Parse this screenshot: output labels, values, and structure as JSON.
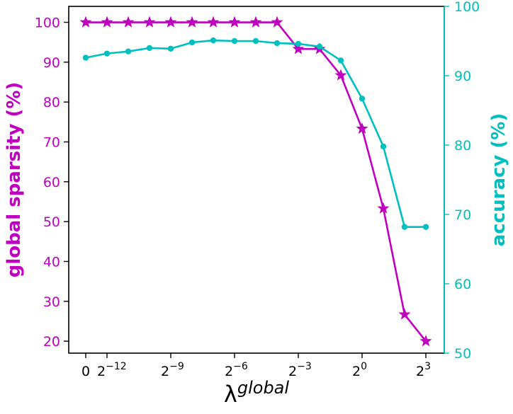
{
  "chart_data": {
    "type": "line",
    "title": "",
    "xlabel": {
      "base": "λ",
      "sup": "global"
    },
    "ylabel_left": "global sparsity (%)",
    "ylabel_right": "accuracy (%)",
    "colors": {
      "left": "#bf00bf",
      "right": "#00bfbf",
      "axis": "#000000"
    },
    "grid": false,
    "legend": "none",
    "x_scale": "log2",
    "x_tick_labels": [
      {
        "base": "0",
        "exp": "",
        "at": -13
      },
      {
        "base": "2",
        "exp": "−12",
        "at": -12
      },
      {
        "base": "2",
        "exp": "−9",
        "at": -9
      },
      {
        "base": "2",
        "exp": "−6",
        "at": -6
      },
      {
        "base": "2",
        "exp": "−3",
        "at": -3
      },
      {
        "base": "2",
        "exp": "0",
        "at": 0
      },
      {
        "base": "2",
        "exp": "3",
        "at": 3
      }
    ],
    "x": [
      0,
      0.000244140625,
      0.00048828125,
      0.0009765625,
      0.001953125,
      0.00390625,
      0.0078125,
      0.015625,
      0.03125,
      0.0625,
      0.125,
      0.25,
      0.5,
      1,
      2,
      4,
      8
    ],
    "series": [
      {
        "axis": "left",
        "marker": "star",
        "values": [
          100,
          100,
          100,
          100,
          100,
          100,
          100,
          100,
          100,
          100,
          93.3,
          93.3,
          86.7,
          73.3,
          53.3,
          26.7,
          20
        ]
      },
      {
        "axis": "right",
        "marker": "circle",
        "values": [
          92.6,
          93.2,
          93.5,
          94.0,
          93.9,
          94.8,
          95.1,
          95.0,
          95.0,
          94.7,
          94.6,
          94.2,
          92.2,
          86.7,
          79.8,
          68.2,
          68.2
        ]
      }
    ],
    "ylim_left": [
      17,
      104
    ],
    "yticks_left": [
      20,
      30,
      40,
      50,
      60,
      70,
      80,
      90,
      100
    ],
    "ylim_right": [
      50,
      100
    ],
    "yticks_right": [
      50,
      60,
      70,
      80,
      90,
      100
    ]
  }
}
